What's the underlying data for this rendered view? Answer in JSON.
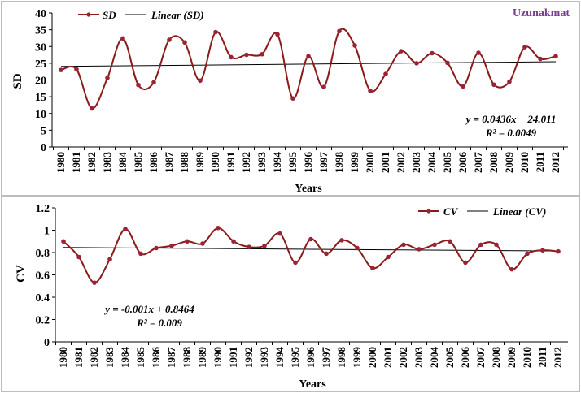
{
  "colors": {
    "series": "#8b1a1a",
    "marker": "#9b2335",
    "trend": "#000000",
    "station": "#7a3b8f"
  },
  "chart_data": [
    {
      "type": "line",
      "station_label": "Uzunakmat",
      "ylabel": "SD",
      "xlabel": "Years",
      "ylim": [
        0,
        40
      ],
      "yticks": [
        "0",
        "5",
        "10",
        "15",
        "20",
        "25",
        "30",
        "35",
        "40"
      ],
      "x": [
        "1980",
        "1981",
        "1982",
        "1983",
        "1984",
        "1985",
        "1986",
        "1987",
        "1988",
        "1989",
        "1990",
        "1991",
        "1992",
        "1993",
        "1994",
        "1995",
        "1996",
        "1997",
        "1998",
        "1999",
        "2000",
        "2001",
        "2002",
        "2003",
        "2004",
        "2005",
        "2006",
        "2007",
        "2008",
        "2009",
        "2010",
        "2011",
        "2012"
      ],
      "series": [
        {
          "name": "SD",
          "values": [
            23,
            23.2,
            11.5,
            20.6,
            32.4,
            18.5,
            19.3,
            32.0,
            31.2,
            19.8,
            34.3,
            26.8,
            27.5,
            27.7,
            33.6,
            14.5,
            27.1,
            17.9,
            34.6,
            30.3,
            16.8,
            21.8,
            28.6,
            25.0,
            28.0,
            25.1,
            18.1,
            28.1,
            18.6,
            19.5,
            29.8,
            26.3,
            27.1
          ]
        }
      ],
      "trend": {
        "name": "Linear (SD)",
        "slope": 0.0436,
        "intercept": 24.011
      },
      "equation": "y = 0.0436x + 24.011",
      "r2": "R² = 0.0049",
      "legend_position": "top-left"
    },
    {
      "type": "line",
      "ylabel": "CV",
      "xlabel": "Years",
      "ylim": [
        0,
        1.2
      ],
      "yticks": [
        "0",
        "0.2",
        "0.4",
        "0.6",
        "0.8",
        "1",
        "1.2"
      ],
      "x": [
        "1980",
        "1981",
        "1982",
        "1983",
        "1984",
        "1985",
        "1986",
        "1987",
        "1988",
        "1989",
        "1990",
        "1991",
        "1992",
        "1993",
        "1994",
        "1995",
        "1996",
        "1997",
        "1998",
        "1999",
        "2000",
        "2001",
        "2002",
        "2003",
        "2004",
        "2005",
        "2006",
        "2007",
        "2008",
        "2009",
        "2010",
        "2011",
        "2012"
      ],
      "series": [
        {
          "name": "CV",
          "values": [
            0.9,
            0.76,
            0.53,
            0.74,
            1.01,
            0.79,
            0.84,
            0.86,
            0.9,
            0.88,
            1.02,
            0.9,
            0.85,
            0.86,
            0.97,
            0.71,
            0.92,
            0.79,
            0.91,
            0.84,
            0.66,
            0.76,
            0.87,
            0.83,
            0.87,
            0.9,
            0.71,
            0.87,
            0.87,
            0.65,
            0.79,
            0.82,
            0.81
          ]
        }
      ],
      "trend": {
        "name": "Linear (CV)",
        "slope": -0.001,
        "intercept": 0.8464
      },
      "equation": "y = -0.001x + 0.8464",
      "r2": "R² = 0.009",
      "legend_position": "top-right"
    }
  ]
}
